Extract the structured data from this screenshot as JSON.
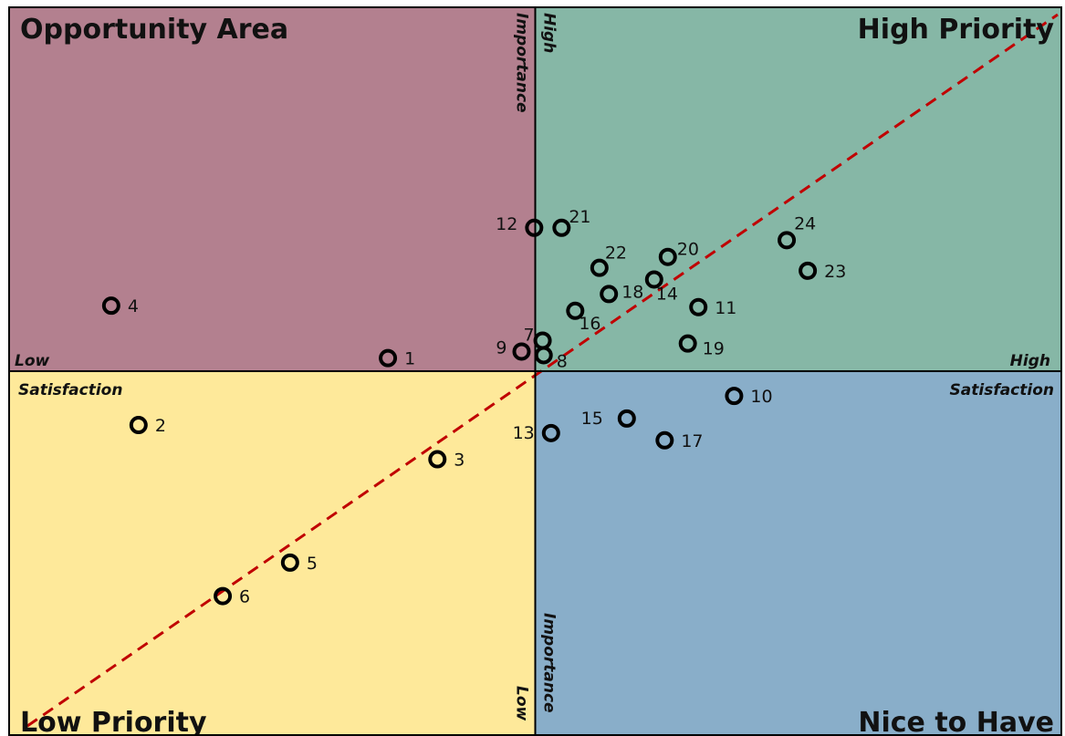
{
  "quadrants": {
    "top_left": {
      "label": "Opportunity Area",
      "color": "#b3808f"
    },
    "top_right": {
      "label": "High Priority",
      "color": "#86b7a6"
    },
    "bottom_left": {
      "label": "Low Priority",
      "color": "#fee99a"
    },
    "bottom_right": {
      "label": "Nice to Have",
      "color": "#89aec9"
    }
  },
  "axis_labels": {
    "satisfaction": "Satisfaction",
    "importance": "Importance",
    "low": "Low",
    "high": "High"
  },
  "chart_data": {
    "type": "scatter",
    "xlabel": "Satisfaction",
    "ylabel": "Importance",
    "xlim": [
      0,
      10
    ],
    "ylim": [
      0,
      10
    ],
    "grid": false,
    "reference_line": {
      "style": "dashed",
      "color": "#c00000",
      "from": [
        0,
        0
      ],
      "to": [
        10,
        10
      ]
    },
    "points": [
      {
        "label": "1",
        "x": 3.6,
        "y": 5.18
      },
      {
        "label": "2",
        "x": 1.23,
        "y": 4.26
      },
      {
        "label": "3",
        "x": 4.07,
        "y": 3.79
      },
      {
        "label": "4",
        "x": 0.97,
        "y": 5.9
      },
      {
        "label": "5",
        "x": 2.67,
        "y": 2.37
      },
      {
        "label": "6",
        "x": 2.03,
        "y": 1.91
      },
      {
        "label": "7",
        "x": 5.07,
        "y": 5.42
      },
      {
        "label": "8",
        "x": 5.08,
        "y": 5.22
      },
      {
        "label": "9",
        "x": 4.87,
        "y": 5.27
      },
      {
        "label": "10",
        "x": 6.89,
        "y": 4.66
      },
      {
        "label": "11",
        "x": 6.55,
        "y": 5.88
      },
      {
        "label": "12",
        "x": 4.99,
        "y": 6.97
      },
      {
        "label": "13",
        "x": 5.15,
        "y": 4.15
      },
      {
        "label": "14",
        "x": 6.13,
        "y": 6.26
      },
      {
        "label": "15",
        "x": 5.87,
        "y": 4.35
      },
      {
        "label": "16",
        "x": 5.38,
        "y": 5.83
      },
      {
        "label": "17",
        "x": 6.23,
        "y": 4.05
      },
      {
        "label": "18",
        "x": 5.7,
        "y": 6.06
      },
      {
        "label": "19",
        "x": 6.45,
        "y": 5.38
      },
      {
        "label": "20",
        "x": 6.26,
        "y": 6.57
      },
      {
        "label": "21",
        "x": 5.25,
        "y": 6.97
      },
      {
        "label": "22",
        "x": 5.61,
        "y": 6.42
      },
      {
        "label": "23",
        "x": 7.59,
        "y": 6.38
      },
      {
        "label": "24",
        "x": 7.39,
        "y": 6.8
      }
    ]
  }
}
